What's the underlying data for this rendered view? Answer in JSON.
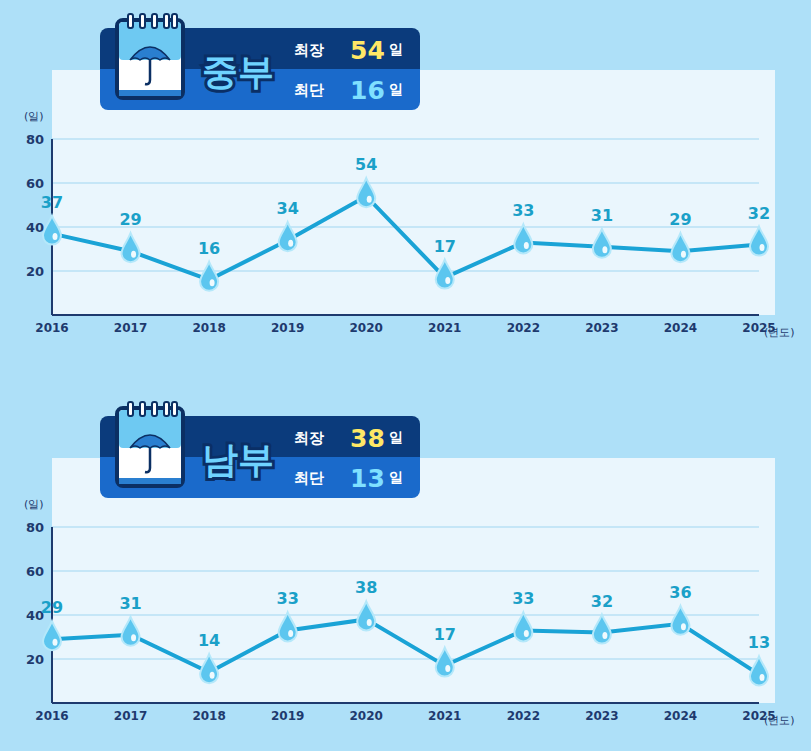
{
  "chart_data": [
    {
      "type": "line",
      "title": "중부",
      "annotations": [
        {
          "label": "최장",
          "value": 54,
          "unit": "일"
        },
        {
          "label": "최단",
          "value": 16,
          "unit": "일"
        }
      ],
      "y_label": "(일)",
      "x_label": "(년도)",
      "categories": [
        "2016",
        "2017",
        "2018",
        "2019",
        "2020",
        "2021",
        "2022",
        "2023",
        "2024",
        "2025"
      ],
      "values": [
        37,
        29,
        16,
        34,
        54,
        17,
        33,
        31,
        29,
        32
      ],
      "color": "#1aa3d6",
      "marker": "droplet",
      "ylim": [
        0,
        80
      ],
      "yticks": [
        20,
        40,
        60,
        80
      ],
      "grid": true,
      "data_labels": true
    },
    {
      "type": "line",
      "title": "남부",
      "annotations": [
        {
          "label": "최장",
          "value": 38,
          "unit": "일"
        },
        {
          "label": "최단",
          "value": 13,
          "unit": "일"
        }
      ],
      "y_label": "(일)",
      "x_label": "(년도)",
      "categories": [
        "2016",
        "2017",
        "2018",
        "2019",
        "2020",
        "2021",
        "2022",
        "2023",
        "2024",
        "2025"
      ],
      "values": [
        29,
        31,
        14,
        33,
        38,
        17,
        33,
        32,
        36,
        13
      ],
      "color": "#1aa3d6",
      "marker": "droplet",
      "ylim": [
        0,
        80
      ],
      "yticks": [
        20,
        40,
        60,
        80
      ],
      "grid": true,
      "data_labels": true
    }
  ]
}
